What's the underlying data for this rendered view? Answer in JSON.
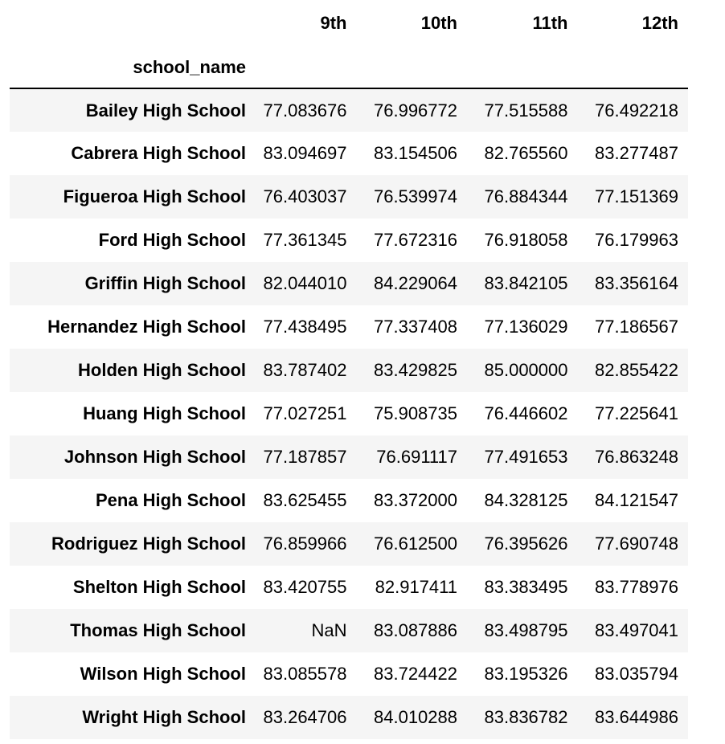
{
  "table": {
    "index_name": "school_name",
    "columns": [
      "9th",
      "10th",
      "11th",
      "12th"
    ],
    "rows": [
      {
        "name": "Bailey High School",
        "values": [
          "77.083676",
          "76.996772",
          "77.515588",
          "76.492218"
        ]
      },
      {
        "name": "Cabrera High School",
        "values": [
          "83.094697",
          "83.154506",
          "82.765560",
          "83.277487"
        ]
      },
      {
        "name": "Figueroa High School",
        "values": [
          "76.403037",
          "76.539974",
          "76.884344",
          "77.151369"
        ]
      },
      {
        "name": "Ford High School",
        "values": [
          "77.361345",
          "77.672316",
          "76.918058",
          "76.179963"
        ]
      },
      {
        "name": "Griffin High School",
        "values": [
          "82.044010",
          "84.229064",
          "83.842105",
          "83.356164"
        ]
      },
      {
        "name": "Hernandez High School",
        "values": [
          "77.438495",
          "77.337408",
          "77.136029",
          "77.186567"
        ]
      },
      {
        "name": "Holden High School",
        "values": [
          "83.787402",
          "83.429825",
          "85.000000",
          "82.855422"
        ]
      },
      {
        "name": "Huang High School",
        "values": [
          "77.027251",
          "75.908735",
          "76.446602",
          "77.225641"
        ]
      },
      {
        "name": "Johnson High School",
        "values": [
          "77.187857",
          "76.691117",
          "77.491653",
          "76.863248"
        ]
      },
      {
        "name": "Pena High School",
        "values": [
          "83.625455",
          "83.372000",
          "84.328125",
          "84.121547"
        ]
      },
      {
        "name": "Rodriguez High School",
        "values": [
          "76.859966",
          "76.612500",
          "76.395626",
          "77.690748"
        ]
      },
      {
        "name": "Shelton High School",
        "values": [
          "83.420755",
          "82.917411",
          "83.383495",
          "83.778976"
        ]
      },
      {
        "name": "Thomas High School",
        "values": [
          "NaN",
          "83.087886",
          "83.498795",
          "83.497041"
        ]
      },
      {
        "name": "Wilson High School",
        "values": [
          "83.085578",
          "83.724422",
          "83.195326",
          "83.035794"
        ]
      },
      {
        "name": "Wright High School",
        "values": [
          "83.264706",
          "84.010288",
          "83.836782",
          "83.644986"
        ]
      }
    ]
  }
}
